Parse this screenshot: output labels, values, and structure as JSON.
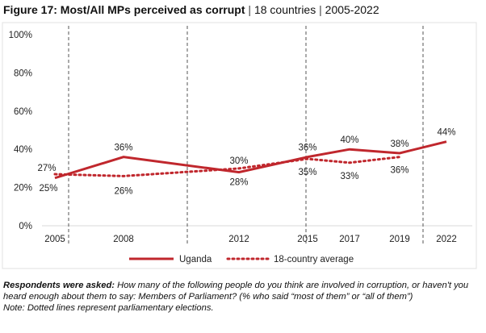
{
  "chart_data": {
    "type": "line",
    "title": "Figure 17: Most/All MPs perceived as corrupt",
    "subtitle_parts": [
      "18 countries",
      "2005-2022"
    ],
    "categories": [
      "2005",
      "2008",
      "2012",
      "2015",
      "2017",
      "2019",
      "2022"
    ],
    "yticks": [
      "0%",
      "20%",
      "40%",
      "60%",
      "80%",
      "100%"
    ],
    "ylim": [
      0,
      100
    ],
    "election_markers": [
      "between 2005 and 2008",
      "between 2008 and 2012",
      "2015",
      "between 2019 and 2022"
    ],
    "series": [
      {
        "name": "Uganda",
        "style": "solid",
        "color": "#C0272D",
        "values": [
          25,
          36,
          28,
          36,
          40,
          38,
          44
        ],
        "labels": [
          "25%",
          "36%",
          "28%",
          "36%",
          "40%",
          "38%",
          "44%"
        ]
      },
      {
        "name": "18-country average",
        "style": "dotted",
        "color": "#C0272D",
        "values": [
          27,
          26,
          30,
          35,
          33,
          36,
          null
        ],
        "labels": [
          "27%",
          "26%",
          "30%",
          "35%",
          "33%",
          "36%",
          null
        ]
      }
    ],
    "legend_position": "bottom"
  },
  "notes": {
    "asked_label": "Respondents were asked:",
    "asked_text": " How many of the following people do you think are involved in corruption, or haven't you heard enough about them to say: Members of Parliament? (% who said “most of them” or “all of them”)",
    "note": "Note: Dotted lines represent parliamentary elections."
  }
}
